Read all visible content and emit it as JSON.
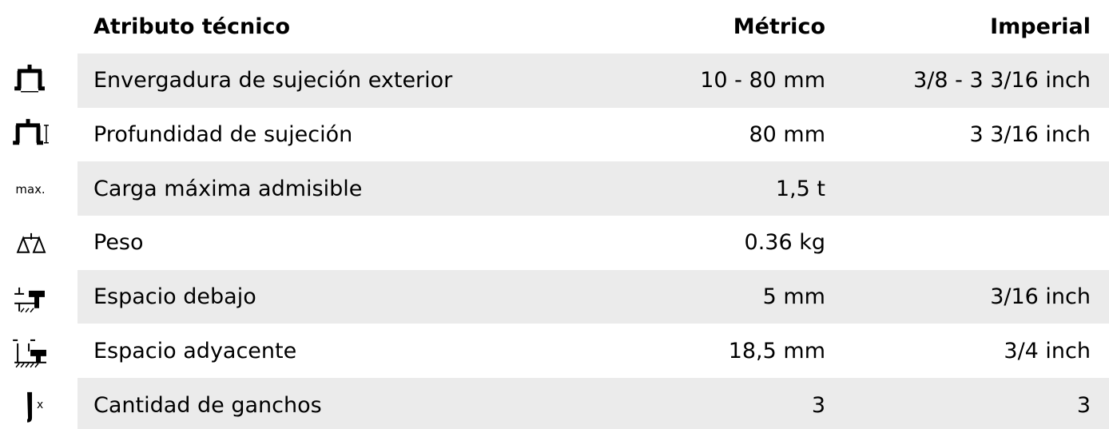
{
  "table": {
    "header": [
      "Atributo técnico",
      "Métrico",
      "Imperial"
    ],
    "rows": [
      {
        "label": "Envergadura de sujeción exterior",
        "metric": "10 - 80 mm",
        "imperial": "3/8 - 3 3/16 inch"
      },
      {
        "label": "Profundidad de sujeción",
        "metric": "80 mm",
        "imperial": "3 3/16 inch"
      },
      {
        "icon_text": "max.",
        "label": "Carga máxima admisible",
        "metric": "1,5 t",
        "imperial": null
      },
      {
        "label": "Peso",
        "metric": "0.36 kg",
        "imperial": null
      },
      {
        "label": "Espacio debajo",
        "metric": "5 mm",
        "imperial": "3/16 inch"
      },
      {
        "label": "Espacio adyacente",
        "metric": "18,5 mm",
        "imperial": "3/4 inch"
      },
      {
        "icon_text": "x",
        "label": "Cantidad de ganchos",
        "metric": "3",
        "imperial": "3"
      }
    ]
  }
}
